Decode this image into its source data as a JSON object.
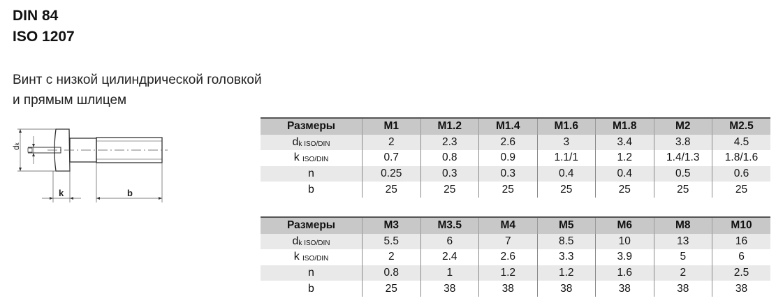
{
  "title": {
    "line1": "DIN 84",
    "line2": "ISO 1207"
  },
  "description": {
    "line1": "Винт с низкой цилиндрической головкой",
    "line2": "и прямым шлицем"
  },
  "drawing": {
    "labels": {
      "dk": "dk",
      "k": "k",
      "b": "b"
    }
  },
  "row_labels": {
    "header": "Размеры",
    "dk": "d",
    "dk_sub": "k ISO/DIN",
    "k": "k",
    "k_sub": "ISO/DIN",
    "n": "n",
    "b": "b"
  },
  "tables": [
    {
      "sizes": [
        "M1",
        "M1.2",
        "M1.4",
        "M1.6",
        "M1.8",
        "M2",
        "M2.5"
      ],
      "dk": [
        "2",
        "2.3",
        "2.6",
        "3",
        "3.4",
        "3.8",
        "4.5"
      ],
      "k": [
        "0.7",
        "0.8",
        "0.9",
        "1.1/1",
        "1.2",
        "1.4/1.3",
        "1.8/1.6"
      ],
      "n": [
        "0.25",
        "0.3",
        "0.3",
        "0.4",
        "0.4",
        "0.5",
        "0.6"
      ],
      "b": [
        "25",
        "25",
        "25",
        "25",
        "25",
        "25",
        "25"
      ]
    },
    {
      "sizes": [
        "M3",
        "M3.5",
        "M4",
        "M5",
        "M6",
        "M8",
        "M10"
      ],
      "dk": [
        "5.5",
        "6",
        "7",
        "8.5",
        "10",
        "13",
        "16"
      ],
      "k": [
        "2",
        "2.4",
        "2.6",
        "3.3",
        "3.9",
        "5",
        "6"
      ],
      "n": [
        "0.8",
        "1",
        "1.2",
        "1.2",
        "1.6",
        "2",
        "2.5"
      ],
      "b": [
        "25",
        "38",
        "38",
        "38",
        "38",
        "38",
        "38"
      ]
    }
  ]
}
